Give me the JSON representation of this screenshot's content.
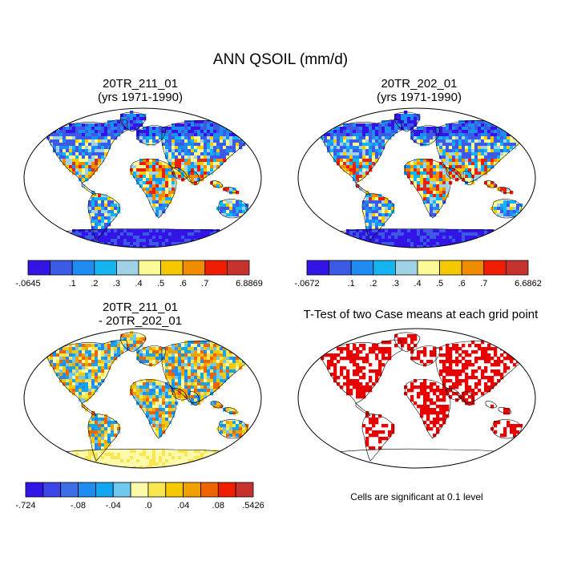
{
  "figure": {
    "title": "ANN QSOIL (mm/d)",
    "panels": [
      {
        "id": "case1",
        "title_line1": "20TR_211_01",
        "title_line2": "(yrs 1971-1990)"
      },
      {
        "id": "case2",
        "title_line1": "20TR_202_01",
        "title_line2": "(yrs 1971-1990)"
      },
      {
        "id": "diff",
        "title_line1": "20TR_211_01",
        "title_line2": "- 20TR_202_01"
      },
      {
        "id": "ttest",
        "title_line1": "T-Test of two Case means at each grid point"
      }
    ],
    "significance_note": "Cells are significant at 0.1 level"
  },
  "colorbars": {
    "case1": {
      "colors": [
        "#3214e6",
        "#3c5ae6",
        "#1e8cf0",
        "#14b4f0",
        "#a0d2e6",
        "#fafa96",
        "#f5c800",
        "#f08c00",
        "#f01e00",
        "#c8322d"
      ],
      "labels": [
        "-.0645",
        "",
        ".1",
        ".2",
        ".3",
        ".4",
        ".5",
        ".6",
        ".7",
        "",
        "6.8869"
      ]
    },
    "case2": {
      "colors": [
        "#3214e6",
        "#3c5ae6",
        "#1e8cf0",
        "#14b4f0",
        "#a0d2e6",
        "#fafa96",
        "#f5c800",
        "#f08c00",
        "#f01e00",
        "#c8322d"
      ],
      "labels": [
        "-.0672",
        "",
        ".1",
        ".2",
        ".3",
        ".4",
        ".5",
        ".6",
        ".7",
        "",
        "6.6862"
      ]
    },
    "diff": {
      "colors": [
        "#3214e6",
        "#3c46e6",
        "#3c6ee6",
        "#1e8cf0",
        "#14a5f0",
        "#6ec8f0",
        "#fafaaa",
        "#fae650",
        "#f5c800",
        "#f0a000",
        "#f06400",
        "#f01e00",
        "#c8322d"
      ],
      "labels": [
        "-.724",
        "",
        "",
        "-.08",
        "",
        "-.04",
        "",
        ".0",
        "",
        ".04",
        "",
        ".08",
        "",
        ".5426"
      ]
    }
  }
}
